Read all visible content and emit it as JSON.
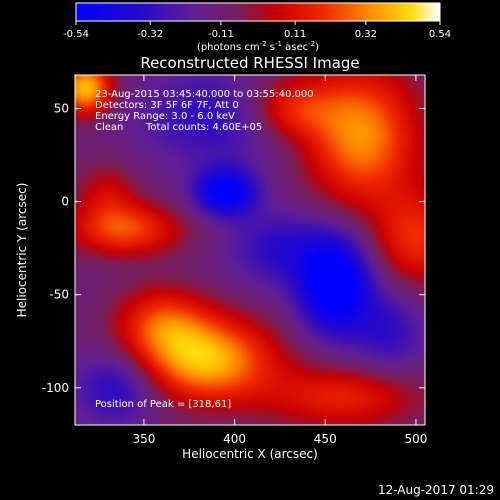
{
  "chart_data": {
    "type": "heatmap",
    "title": "Reconstructed RHESSI Image",
    "xlabel": "Heliocentric X (arcsec)",
    "ylabel": "Heliocentric Y (arcsec)",
    "xlim": [
      312,
      505
    ],
    "ylim": [
      -120,
      68
    ],
    "x_ticks": [
      350,
      400,
      450,
      500
    ],
    "y_ticks": [
      50,
      0,
      -50,
      -100
    ],
    "colorbar": {
      "ticks": [
        "-0.54",
        "-0.32",
        "-0.11",
        "0.11",
        "0.32",
        "0.54"
      ],
      "range": [
        -0.54,
        0.54
      ],
      "unit_label": {
        "prefix": "(photons cm",
        "exp1": "-2",
        "mid1": " s",
        "exp2": "-1",
        "mid2": " asec",
        "exp3": "-2",
        "suffix": ")"
      }
    },
    "annotations": {
      "time_range": "23-Aug-2015 03:45:40.000 to 03:55:40.000",
      "detectors": "Detectors: 3F 5F 6F 7F, Att 0",
      "energy": "Energy Range: 3.0 - 6.0 keV",
      "algorithm": "Clean",
      "total_counts": "Total counts: 4.60E+05",
      "peak": "Position of Peak = [318,61]"
    },
    "components": [
      {
        "x": 318,
        "y": 61,
        "value": 0.54,
        "sx": 10,
        "sy": 10
      },
      {
        "x": 385,
        "y": -85,
        "value": 0.52,
        "sx": 26,
        "sy": 16
      },
      {
        "x": 360,
        "y": -65,
        "value": 0.3,
        "sx": 18,
        "sy": 14
      },
      {
        "x": 470,
        "y": 35,
        "value": 0.46,
        "sx": 22,
        "sy": 26
      },
      {
        "x": 430,
        "y": 50,
        "value": 0.3,
        "sx": 18,
        "sy": 12
      },
      {
        "x": 500,
        "y": -20,
        "value": 0.3,
        "sx": 16,
        "sy": 18
      },
      {
        "x": 340,
        "y": -15,
        "value": 0.35,
        "sx": 22,
        "sy": 10
      },
      {
        "x": 460,
        "y": -105,
        "value": 0.28,
        "sx": 30,
        "sy": 12
      },
      {
        "x": 330,
        "y": 5,
        "value": 0.18,
        "sx": 12,
        "sy": 12
      },
      {
        "x": 455,
        "y": -45,
        "value": -0.54,
        "sx": 14,
        "sy": 18
      },
      {
        "x": 395,
        "y": 5,
        "value": -0.45,
        "sx": 12,
        "sy": 9
      },
      {
        "x": 390,
        "y": 45,
        "value": -0.22,
        "sx": 30,
        "sy": 18
      },
      {
        "x": 335,
        "y": -100,
        "value": -0.25,
        "sx": 16,
        "sy": 14
      },
      {
        "x": 425,
        "y": -25,
        "value": -0.22,
        "sx": 20,
        "sy": 14
      },
      {
        "x": 485,
        "y": -70,
        "value": -0.2,
        "sx": 14,
        "sy": 16
      }
    ],
    "background_level": -0.12
  },
  "footer": {
    "timestamp": "12-Aug-2017 01:29"
  }
}
